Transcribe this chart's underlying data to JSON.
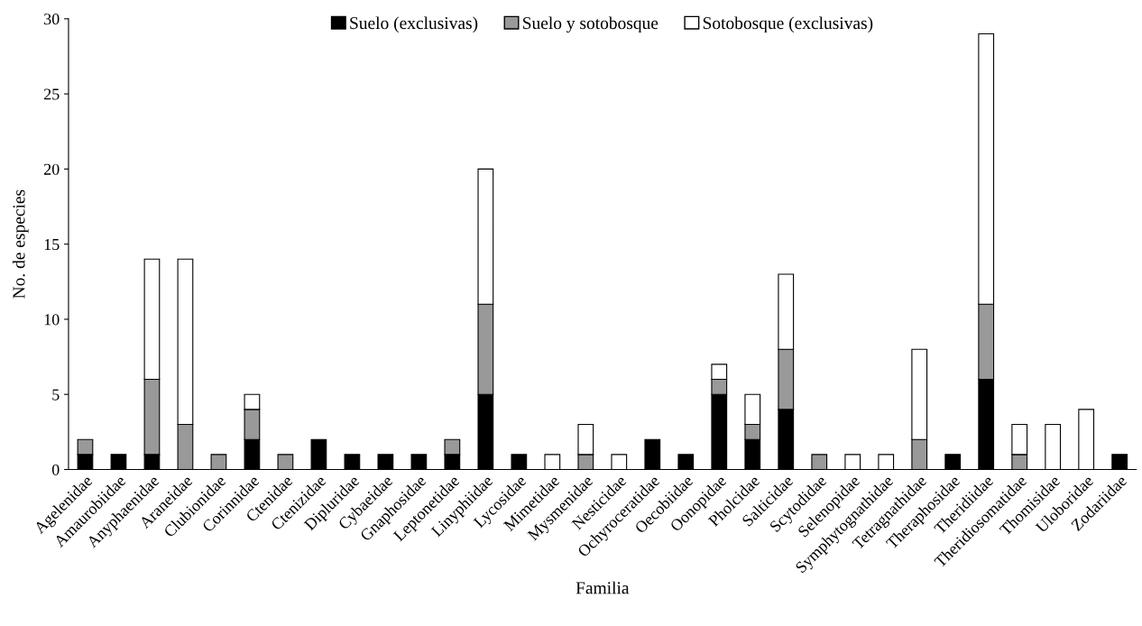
{
  "chart_data": {
    "type": "bar",
    "stacked": true,
    "xlabel": "Familia",
    "ylabel": "No. de especies",
    "categories": [
      "Agelenidae",
      "Amaurobiidae",
      "Anyphaenidae",
      "Araneidae",
      "Clubionidae",
      "Corinnidae",
      "Ctenidae",
      "Ctenizidae",
      "Dipluridae",
      "Cybaeidae",
      "Gnaphosidae",
      "Leptonetidae",
      "Linyphiidae",
      "Lycosidae",
      "Mimetidae",
      "Mysmenidae",
      "Nesticidae",
      "Ochyroceratidae",
      "Oecobiidae",
      "Oonopidae",
      "Pholcidae",
      "Salticidae",
      "Scytodidae",
      "Selenopidae",
      "Symphytognathidae",
      "Tetragnathidae",
      "Theraphosidae",
      "Theridiidae",
      "Theridiosomatidae",
      "Thomisidae",
      "Uloboridae",
      "Zodariidae"
    ],
    "series": [
      {
        "name": "Suelo (exclusivas)",
        "color": "#000000",
        "values": [
          1,
          1,
          1,
          0,
          0,
          2,
          0,
          2,
          1,
          1,
          1,
          1,
          5,
          1,
          0,
          0,
          0,
          2,
          1,
          5,
          2,
          4,
          0,
          0,
          0,
          0,
          1,
          6,
          0,
          0,
          0,
          1
        ]
      },
      {
        "name": "Suelo y sotobosque",
        "color": "#999999",
        "values": [
          1,
          0,
          5,
          3,
          1,
          2,
          1,
          0,
          0,
          0,
          0,
          1,
          6,
          0,
          0,
          1,
          0,
          0,
          0,
          1,
          1,
          4,
          1,
          0,
          0,
          2,
          0,
          5,
          1,
          0,
          0,
          0
        ]
      },
      {
        "name": "Sotobosque (exclusivas)",
        "color": "#ffffff",
        "values": [
          0,
          0,
          8,
          11,
          0,
          1,
          0,
          0,
          0,
          0,
          0,
          0,
          9,
          0,
          1,
          2,
          1,
          0,
          0,
          1,
          2,
          5,
          0,
          1,
          1,
          6,
          0,
          18,
          2,
          3,
          4,
          0
        ]
      }
    ],
    "ylim": [
      0,
      30
    ],
    "yticks": [
      0,
      5,
      10,
      15,
      20,
      25,
      30
    ],
    "grid": false,
    "legend": "top"
  }
}
